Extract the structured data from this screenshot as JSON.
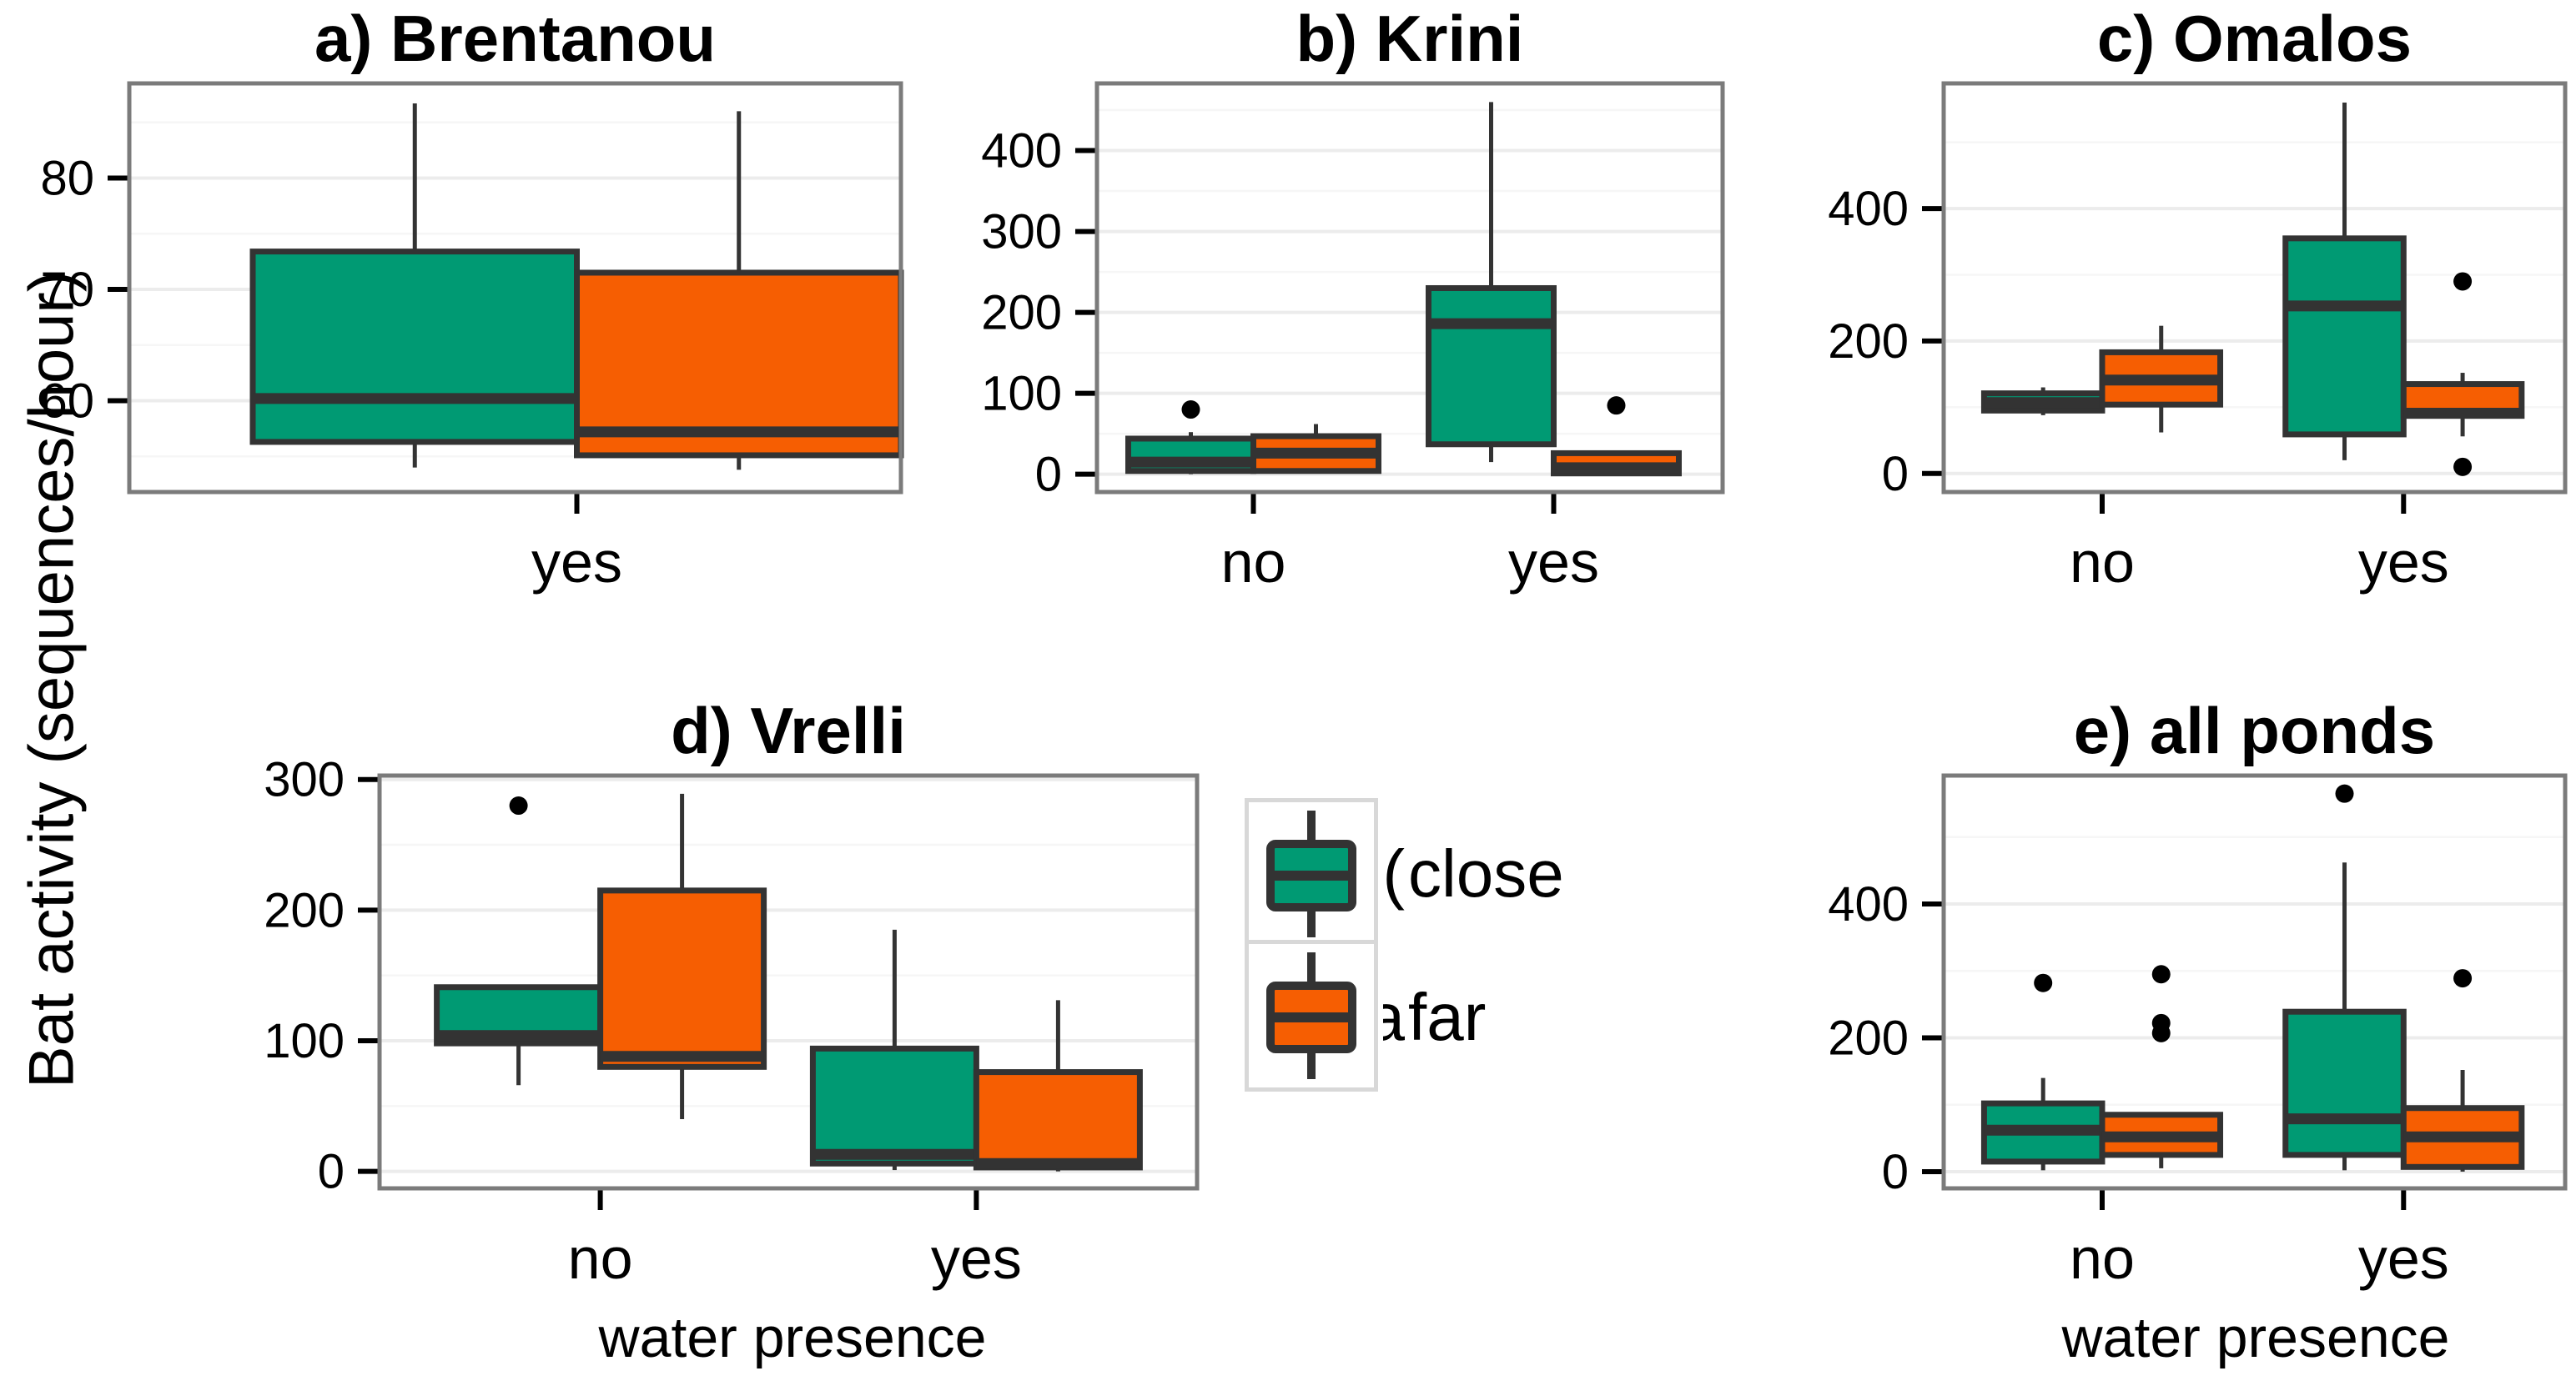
{
  "figure": {
    "y_axis_label": "Bat activity (sequences/hour)",
    "x_axis_label": "water presence",
    "colors": {
      "close": "#009A73",
      "far": "#F65E02",
      "box_stroke": "#333333",
      "outlier": "#000000",
      "panel_border": "#7B7B7B",
      "grid_major": "#ECECEC",
      "grid_minor": "#F6F6F6",
      "tick": "#000000",
      "text": "#000000",
      "legend_key_border": "#D8D8D8",
      "background": "#FFFFFF"
    }
  },
  "legend": {
    "items": [
      {
        "label": "close",
        "clipped_prefix": "(",
        "color_key": "close"
      },
      {
        "label": "far",
        "clipped_prefix": "a",
        "color_key": "far"
      }
    ]
  },
  "chart_data": [
    {
      "id": "a",
      "title": "a) Brentanou",
      "type": "boxplot",
      "ylim": [
        51.8,
        88.5
      ],
      "yticks": [
        60,
        70,
        80
      ],
      "categories": [
        "yes"
      ],
      "x_axis_title_shown": false,
      "series": [
        {
          "name": "close",
          "boxes": [
            {
              "category": "yes",
              "whislo": 54,
              "q1": 56.3,
              "med": 60.2,
              "q3": 73.4,
              "whishi": 86.7,
              "outliers": []
            }
          ]
        },
        {
          "name": "far",
          "boxes": [
            {
              "category": "yes",
              "whislo": 53.8,
              "q1": 55.1,
              "med": 57.2,
              "q3": 71.5,
              "whishi": 86,
              "outliers": []
            }
          ]
        }
      ]
    },
    {
      "id": "b",
      "title": "b) Krini",
      "type": "boxplot",
      "ylim": [
        -22,
        483
      ],
      "yticks": [
        0,
        100,
        200,
        300,
        400
      ],
      "categories": [
        "no",
        "yes"
      ],
      "x_axis_title_shown": false,
      "series": [
        {
          "name": "close",
          "boxes": [
            {
              "category": "no",
              "whislo": 0,
              "q1": 4,
              "med": 15,
              "q3": 44,
              "whishi": 52,
              "outliers": [
                80
              ]
            },
            {
              "category": "yes",
              "whislo": 15,
              "q1": 37,
              "med": 186,
              "q3": 230,
              "whishi": 460,
              "outliers": []
            }
          ]
        },
        {
          "name": "far",
          "boxes": [
            {
              "category": "no",
              "whislo": 2,
              "q1": 4,
              "med": 26,
              "q3": 47,
              "whishi": 62,
              "outliers": []
            },
            {
              "category": "yes",
              "whislo": 0,
              "q1": 1,
              "med": 8,
              "q3": 26,
              "whishi": 28,
              "outliers": [
                85
              ]
            }
          ]
        }
      ]
    },
    {
      "id": "c",
      "title": "c) Omalos",
      "type": "boxplot",
      "ylim": [
        -28,
        589
      ],
      "yticks": [
        0,
        200,
        400
      ],
      "categories": [
        "no",
        "yes"
      ],
      "x_axis_title_shown": false,
      "series": [
        {
          "name": "close",
          "boxes": [
            {
              "category": "no",
              "whislo": 88,
              "q1": 95,
              "med": 107,
              "q3": 121,
              "whishi": 130,
              "outliers": []
            },
            {
              "category": "yes",
              "whislo": 20,
              "q1": 59,
              "med": 253,
              "q3": 355,
              "whishi": 560,
              "outliers": []
            }
          ]
        },
        {
          "name": "far",
          "boxes": [
            {
              "category": "no",
              "whislo": 62,
              "q1": 104,
              "med": 141,
              "q3": 183,
              "whishi": 223,
              "outliers": []
            },
            {
              "category": "yes",
              "whislo": 56,
              "q1": 87,
              "med": 91,
              "q3": 135,
              "whishi": 152,
              "outliers": [
                290,
                10
              ]
            }
          ]
        }
      ]
    },
    {
      "id": "d",
      "title": "d) Vrelli",
      "type": "boxplot",
      "ylim": [
        -13,
        303
      ],
      "yticks": [
        0,
        100,
        200,
        300
      ],
      "categories": [
        "no",
        "yes"
      ],
      "x_axis_title_shown": true,
      "series": [
        {
          "name": "close",
          "boxes": [
            {
              "category": "no",
              "whislo": 66,
              "q1": 98,
              "med": 104,
              "q3": 141,
              "whishi": 141,
              "outliers": [
                280
              ]
            },
            {
              "category": "yes",
              "whislo": 1,
              "q1": 6,
              "med": 13,
              "q3": 94,
              "whishi": 185,
              "outliers": []
            }
          ]
        },
        {
          "name": "far",
          "boxes": [
            {
              "category": "no",
              "whislo": 40,
              "q1": 80,
              "med": 88,
              "q3": 215,
              "whishi": 289,
              "outliers": []
            },
            {
              "category": "yes",
              "whislo": 0,
              "q1": 3,
              "med": 6,
              "q3": 76,
              "whishi": 131,
              "outliers": []
            }
          ]
        }
      ]
    },
    {
      "id": "e",
      "title": "e) all ponds",
      "type": "boxplot",
      "ylim": [
        -25,
        592
      ],
      "yticks": [
        0,
        200,
        400
      ],
      "categories": [
        "no",
        "yes"
      ],
      "x_axis_title_shown": true,
      "series": [
        {
          "name": "close",
          "boxes": [
            {
              "category": "no",
              "whislo": 2,
              "q1": 15,
              "med": 62,
              "q3": 102,
              "whishi": 140,
              "outliers": [
                282
              ]
            },
            {
              "category": "yes",
              "whislo": 2,
              "q1": 25,
              "med": 79,
              "q3": 239,
              "whishi": 462,
              "outliers": [
                565
              ]
            }
          ]
        },
        {
          "name": "far",
          "boxes": [
            {
              "category": "no",
              "whislo": 5,
              "q1": 25,
              "med": 52,
              "q3": 85,
              "whishi": 85,
              "outliers": [
                295,
                222,
                207
              ]
            },
            {
              "category": "yes",
              "whislo": 0,
              "q1": 7,
              "med": 52,
              "q3": 95,
              "whishi": 152,
              "outliers": [
                289
              ]
            }
          ]
        }
      ]
    }
  ]
}
